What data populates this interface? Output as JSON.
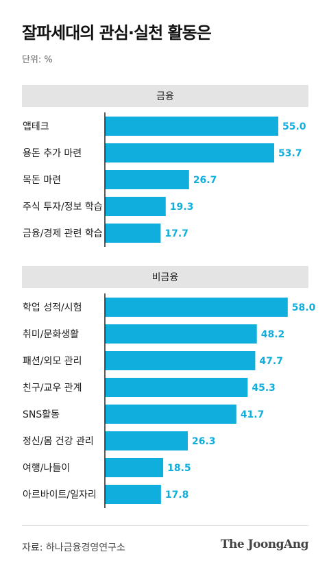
{
  "title": "잘파세대의 관심·실천 활동은",
  "unit_label": "단위: %",
  "source": "자료: 하나금융경영연구소",
  "brand": "The JoongAng",
  "colors": {
    "bar": "#10aedd",
    "value_text": "#10aedd",
    "header_bg": "#e4e4e4"
  },
  "chart_data": {
    "type": "bar",
    "orientation": "horizontal",
    "xlim": [
      0,
      65
    ],
    "groups": [
      {
        "name": "금융",
        "categories": [
          "앱테크",
          "용돈 추가 마련",
          "목돈 마련",
          "주식 투자/정보 학습",
          "금융/경제 관련 학습"
        ],
        "values": [
          55.0,
          53.7,
          26.7,
          19.3,
          17.7
        ],
        "labels": [
          "55.0",
          "53.7",
          "26.7",
          "19.3",
          "17.7"
        ]
      },
      {
        "name": "비금융",
        "categories": [
          "학업 성적/시험",
          "취미/문화생활",
          "패션/외모 관리",
          "친구/교우 관계",
          "SNS활동",
          "정신/몸 건강 관리",
          "여행/나들이",
          "아르바이트/일자리"
        ],
        "values": [
          58.0,
          48.2,
          47.7,
          45.3,
          41.7,
          26.3,
          18.5,
          17.8
        ],
        "labels": [
          "58.0",
          "48.2",
          "47.7",
          "45.3",
          "41.7",
          "26.3",
          "18.5",
          "17.8"
        ]
      }
    ]
  }
}
